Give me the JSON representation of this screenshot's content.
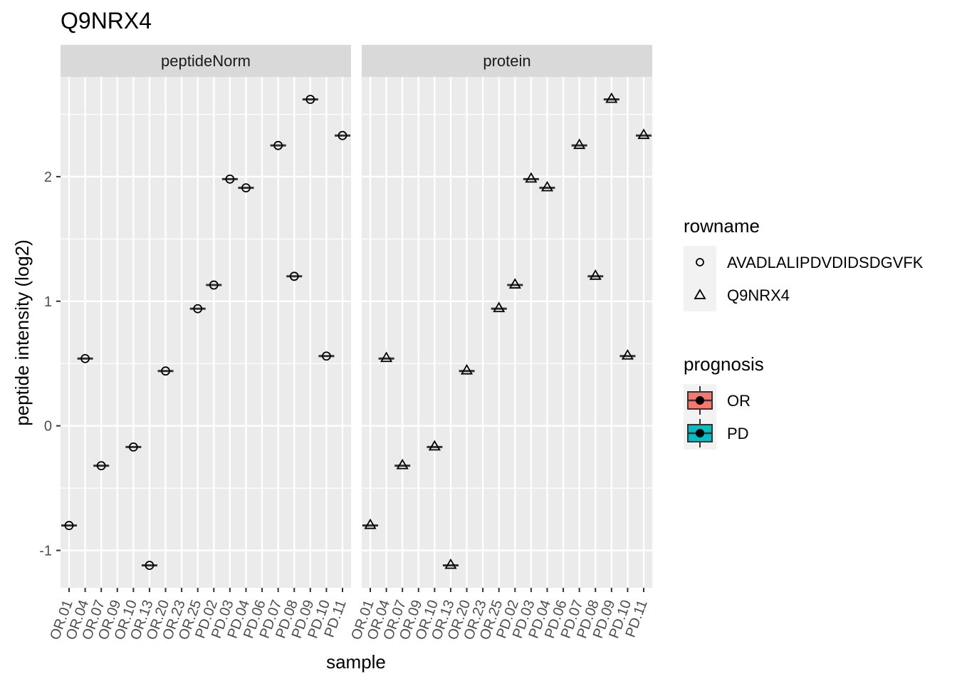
{
  "chart_data": {
    "type": "scatter",
    "title": "Q9NRX4",
    "xlabel": "sample",
    "ylabel": "peptide intensity (log2)",
    "ylim": [
      -1.3,
      2.8
    ],
    "yticks": [
      -1,
      0,
      1,
      2
    ],
    "grid": true,
    "legend_position": "right",
    "categories": [
      "OR.01",
      "OR.04",
      "OR.07",
      "OR.09",
      "OR.10",
      "OR.13",
      "OR.20",
      "OR.23",
      "OR.25",
      "PD.02",
      "PD.03",
      "PD.04",
      "PD.06",
      "PD.07",
      "PD.08",
      "PD.09",
      "PD.10",
      "PD.11"
    ],
    "panels": [
      {
        "name": "peptideNorm",
        "series": [
          {
            "name": "AVADLALIPDVDIDSDGVFK",
            "shape": "circle",
            "values": [
              -0.8,
              0.54,
              -0.32,
              null,
              -0.17,
              -1.12,
              0.44,
              null,
              0.94,
              1.13,
              1.98,
              1.91,
              null,
              2.25,
              1.2,
              2.62,
              0.56,
              2.33
            ]
          }
        ]
      },
      {
        "name": "protein",
        "series": [
          {
            "name": "Q9NRX4",
            "shape": "triangle",
            "values": [
              -0.8,
              0.54,
              -0.32,
              null,
              -0.17,
              -1.12,
              0.44,
              null,
              0.94,
              1.13,
              1.98,
              1.91,
              null,
              2.25,
              1.2,
              2.62,
              0.56,
              2.33
            ]
          }
        ]
      }
    ],
    "legends": [
      {
        "title": "rowname",
        "items": [
          {
            "label": "AVADLALIPDVDIDSDGVFK",
            "shape": "circle"
          },
          {
            "label": "Q9NRX4",
            "shape": "triangle"
          }
        ]
      },
      {
        "title": "prognosis",
        "items": [
          {
            "label": "OR",
            "color": "#f8766d"
          },
          {
            "label": "PD",
            "color": "#00bfc4"
          }
        ]
      }
    ],
    "colors": {
      "panel_bg": "#ebebeb",
      "strip_bg": "#d9d9d9",
      "grid": "#ffffff",
      "point": "#000000"
    }
  }
}
